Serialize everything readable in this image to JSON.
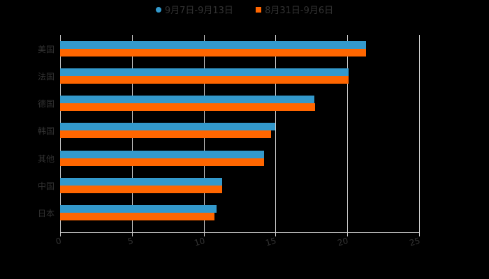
{
  "chart_data": {
    "type": "bar",
    "orientation": "horizontal",
    "title": "",
    "xlabel": "",
    "ylabel": "",
    "categories": [
      "美国",
      "法国",
      "德国",
      "韩国",
      "其他",
      "中国",
      "日本"
    ],
    "series": [
      {
        "name": "9月7日-9月13日",
        "color": "#3399cc",
        "values": [
          21.3,
          20.1,
          17.7,
          15.0,
          14.2,
          11.3,
          10.9
        ]
      },
      {
        "name": "8月31日-9月6日",
        "color": "#ff6600",
        "values": [
          21.3,
          20.1,
          17.75,
          14.7,
          14.2,
          11.3,
          10.75
        ]
      }
    ],
    "xlim": [
      0,
      25
    ],
    "xticks": [
      "0",
      "5",
      "10",
      "15",
      "20",
      "25"
    ],
    "grid": true,
    "legend_position": "top"
  },
  "legend": {
    "items": [
      {
        "label": "9月7日-9月13日",
        "color": "#3399cc",
        "marker": "circle"
      },
      {
        "label": "8月31日-9月6日",
        "color": "#ff6600",
        "marker": "square"
      }
    ]
  }
}
